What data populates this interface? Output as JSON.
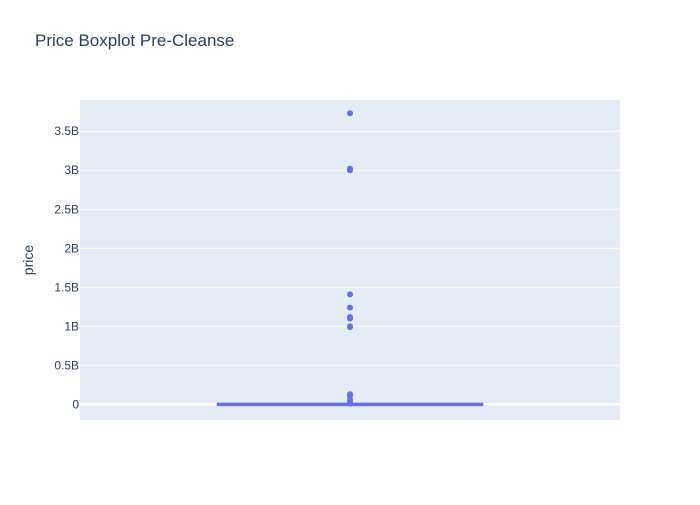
{
  "chart_data": {
    "type": "box",
    "title": "Price Boxplot Pre-Cleanse",
    "xlabel": "",
    "ylabel": "price",
    "ylim": [
      -200000000,
      3900000000
    ],
    "yticks": [
      {
        "value": 0,
        "label": "0"
      },
      {
        "value": 500000000,
        "label": "0.5B"
      },
      {
        "value": 1000000000,
        "label": "1B"
      },
      {
        "value": 1500000000,
        "label": "1.5B"
      },
      {
        "value": 2000000000,
        "label": "2B"
      },
      {
        "value": 2500000000,
        "label": "2.5B"
      },
      {
        "value": 3000000000,
        "label": "3B"
      },
      {
        "value": 3500000000,
        "label": "3.5B"
      }
    ],
    "grid": true,
    "series": [
      {
        "color": "#636efa",
        "q1": 0,
        "median": 0,
        "q3": 0,
        "lower_fence": 0,
        "upper_fence": 0,
        "outliers": [
          3730000000,
          3020000000,
          3000000000,
          1410000000,
          1240000000,
          1120000000,
          1100000000,
          1000000000,
          990000000,
          130000000,
          110000000,
          60000000,
          30000000,
          10000000
        ]
      }
    ]
  },
  "colors": {
    "plot_bg": "#e5ecf6",
    "grid": "#ffffff",
    "text": "#2a3f5f",
    "box": "#636efa"
  }
}
